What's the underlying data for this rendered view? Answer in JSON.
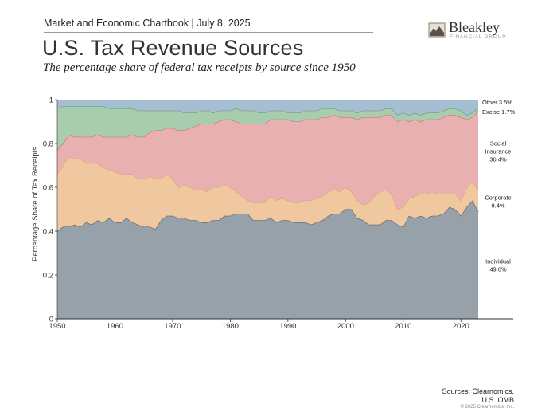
{
  "header": {
    "topline": "Market and Economic Chartbook | July 8, 2025",
    "title": "U.S. Tax Revenue Sources",
    "subtitle": "The percentage share of federal tax receipts by source since 1950"
  },
  "logo": {
    "name": "Bleakley",
    "sub": "FINANCIAL GROUP"
  },
  "footer": {
    "sources_line1": "Sources: Clearnomics,",
    "sources_line2": "U.S. OMB",
    "copyright": "© 2025 Clearnomics, Inc."
  },
  "chart_data": {
    "type": "area",
    "stacked": true,
    "ylabel": "Percentage Share of Tax Receipts",
    "xlabel": "",
    "xlim": [
      1950,
      2023
    ],
    "ylim": [
      0,
      1
    ],
    "xticks": [
      1950,
      1960,
      1970,
      1980,
      1990,
      2000,
      2010,
      2020
    ],
    "yticks": [
      0,
      0.2,
      0.4,
      0.6,
      0.8,
      1
    ],
    "ytick_labels": [
      "0",
      "0.2",
      "0.4",
      "0.6",
      "0.8",
      "1"
    ],
    "x": [
      1950,
      1951,
      1952,
      1953,
      1954,
      1955,
      1956,
      1957,
      1958,
      1959,
      1960,
      1961,
      1962,
      1963,
      1964,
      1965,
      1966,
      1967,
      1968,
      1969,
      1970,
      1971,
      1972,
      1973,
      1974,
      1975,
      1976,
      1977,
      1978,
      1979,
      1980,
      1981,
      1982,
      1983,
      1984,
      1985,
      1986,
      1987,
      1988,
      1989,
      1990,
      1991,
      1992,
      1993,
      1994,
      1995,
      1996,
      1997,
      1998,
      1999,
      2000,
      2001,
      2002,
      2003,
      2004,
      2005,
      2006,
      2007,
      2008,
      2009,
      2010,
      2011,
      2012,
      2013,
      2014,
      2015,
      2016,
      2017,
      2018,
      2019,
      2020,
      2021,
      2022,
      2023
    ],
    "series": [
      {
        "name": "Individual",
        "label": "Individual",
        "value_label": "49.0%",
        "color": "#97a1aa",
        "line": "#4d5660",
        "values": [
          0.4,
          0.42,
          0.42,
          0.43,
          0.42,
          0.44,
          0.43,
          0.45,
          0.44,
          0.46,
          0.44,
          0.44,
          0.46,
          0.44,
          0.43,
          0.42,
          0.42,
          0.41,
          0.45,
          0.47,
          0.47,
          0.46,
          0.46,
          0.45,
          0.45,
          0.44,
          0.44,
          0.45,
          0.45,
          0.47,
          0.47,
          0.48,
          0.48,
          0.48,
          0.45,
          0.45,
          0.45,
          0.46,
          0.44,
          0.45,
          0.45,
          0.44,
          0.44,
          0.44,
          0.43,
          0.44,
          0.45,
          0.47,
          0.48,
          0.48,
          0.5,
          0.5,
          0.46,
          0.45,
          0.43,
          0.43,
          0.43,
          0.45,
          0.45,
          0.43,
          0.42,
          0.47,
          0.46,
          0.47,
          0.46,
          0.47,
          0.47,
          0.48,
          0.51,
          0.5,
          0.47,
          0.51,
          0.54,
          0.49
        ]
      },
      {
        "name": "Corporate",
        "label": "Corporate",
        "value_label": "9.4%",
        "color": "#efc8a0",
        "line": "#dda063",
        "values": [
          0.26,
          0.28,
          0.32,
          0.3,
          0.31,
          0.27,
          0.28,
          0.26,
          0.25,
          0.22,
          0.23,
          0.22,
          0.2,
          0.22,
          0.21,
          0.22,
          0.23,
          0.23,
          0.19,
          0.19,
          0.17,
          0.14,
          0.15,
          0.15,
          0.14,
          0.15,
          0.14,
          0.15,
          0.15,
          0.14,
          0.13,
          0.1,
          0.08,
          0.06,
          0.08,
          0.08,
          0.08,
          0.1,
          0.1,
          0.1,
          0.09,
          0.09,
          0.09,
          0.1,
          0.11,
          0.11,
          0.11,
          0.11,
          0.11,
          0.1,
          0.1,
          0.08,
          0.08,
          0.07,
          0.1,
          0.13,
          0.15,
          0.14,
          0.12,
          0.07,
          0.09,
          0.08,
          0.1,
          0.1,
          0.11,
          0.11,
          0.1,
          0.09,
          0.06,
          0.07,
          0.07,
          0.09,
          0.09,
          0.094
        ]
      },
      {
        "name": "Social Insurance",
        "label": "Social\nInsurance",
        "value_label": "36.4%",
        "color": "#e8b0b0",
        "line": "#cc6a6a",
        "values": [
          0.11,
          0.1,
          0.1,
          0.1,
          0.1,
          0.12,
          0.12,
          0.13,
          0.14,
          0.15,
          0.16,
          0.17,
          0.17,
          0.18,
          0.19,
          0.19,
          0.2,
          0.22,
          0.22,
          0.21,
          0.23,
          0.26,
          0.25,
          0.27,
          0.29,
          0.3,
          0.31,
          0.29,
          0.3,
          0.3,
          0.31,
          0.32,
          0.33,
          0.35,
          0.36,
          0.36,
          0.36,
          0.35,
          0.37,
          0.36,
          0.37,
          0.37,
          0.37,
          0.37,
          0.37,
          0.36,
          0.36,
          0.34,
          0.34,
          0.34,
          0.32,
          0.34,
          0.37,
          0.4,
          0.39,
          0.36,
          0.34,
          0.34,
          0.36,
          0.4,
          0.4,
          0.35,
          0.35,
          0.33,
          0.34,
          0.33,
          0.34,
          0.35,
          0.36,
          0.36,
          0.38,
          0.31,
          0.29,
          0.364
        ]
      },
      {
        "name": "Excise",
        "label": "Excise",
        "value_label": "1.7%",
        "color": "#a7ccae",
        "line": "#5c9968",
        "values": [
          0.19,
          0.17,
          0.13,
          0.14,
          0.14,
          0.14,
          0.14,
          0.13,
          0.14,
          0.13,
          0.13,
          0.13,
          0.13,
          0.12,
          0.12,
          0.12,
          0.1,
          0.09,
          0.09,
          0.08,
          0.08,
          0.09,
          0.08,
          0.07,
          0.06,
          0.06,
          0.06,
          0.05,
          0.05,
          0.04,
          0.04,
          0.06,
          0.06,
          0.06,
          0.06,
          0.05,
          0.05,
          0.04,
          0.04,
          0.04,
          0.03,
          0.04,
          0.04,
          0.04,
          0.04,
          0.04,
          0.04,
          0.04,
          0.03,
          0.03,
          0.03,
          0.03,
          0.03,
          0.03,
          0.03,
          0.03,
          0.03,
          0.03,
          0.03,
          0.03,
          0.03,
          0.03,
          0.03,
          0.03,
          0.03,
          0.03,
          0.03,
          0.03,
          0.03,
          0.03,
          0.03,
          0.02,
          0.02,
          0.017
        ]
      },
      {
        "name": "Other",
        "label": "Other",
        "value_label": "3.5%",
        "color": "#a6bed2",
        "line": "#5f84a3",
        "values": [
          0.04,
          0.03,
          0.03,
          0.03,
          0.03,
          0.03,
          0.03,
          0.03,
          0.03,
          0.04,
          0.04,
          0.04,
          0.04,
          0.04,
          0.05,
          0.05,
          0.05,
          0.05,
          0.05,
          0.05,
          0.05,
          0.05,
          0.06,
          0.06,
          0.06,
          0.05,
          0.05,
          0.06,
          0.05,
          0.05,
          0.05,
          0.04,
          0.05,
          0.05,
          0.05,
          0.06,
          0.06,
          0.05,
          0.05,
          0.05,
          0.06,
          0.06,
          0.06,
          0.05,
          0.05,
          0.05,
          0.04,
          0.04,
          0.04,
          0.05,
          0.05,
          0.05,
          0.06,
          0.05,
          0.05,
          0.05,
          0.05,
          0.04,
          0.04,
          0.07,
          0.06,
          0.07,
          0.06,
          0.07,
          0.06,
          0.06,
          0.06,
          0.05,
          0.04,
          0.04,
          0.05,
          0.07,
          0.06,
          0.035
        ]
      }
    ]
  }
}
